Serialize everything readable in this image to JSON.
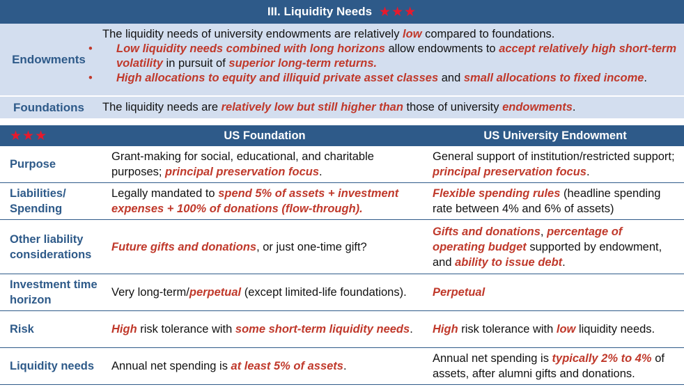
{
  "top": {
    "title": "III. Liquidity Needs",
    "stars": "★★★",
    "endowments_label": "Endowments",
    "endowments_intro": [
      "The liquidity needs of university endowments are relatively ",
      "low",
      " compared to foundations."
    ],
    "bullet_char": "•",
    "bullet1": [
      "Low liquidity needs combined with long horizons",
      " allow endowments to ",
      "accept relatively high short-term volatility",
      " in pursuit of ",
      "superior long-term returns."
    ],
    "bullet2": [
      "High allocations to equity and illiquid private asset classes",
      " and ",
      "small allocations to fixed income",
      "."
    ],
    "foundations_label": "Foundations",
    "foundations_text": [
      "The liquidity needs are ",
      "relatively low but still higher than",
      " those of university ",
      "endowments",
      "."
    ]
  },
  "table": {
    "stars": "★★★",
    "col_foundation": "US Foundation",
    "col_endowment": "US University Endowment",
    "rows": {
      "purpose": {
        "label": "Purpose",
        "foundation": [
          "Grant-making for social, educational, and charitable purposes; ",
          "principal preservation focus",
          "."
        ],
        "endowment": [
          "General support of institution/restricted support; ",
          "principal preservation focus",
          "."
        ]
      },
      "liabilities": {
        "label": "Liabilities/ Spending",
        "foundation": [
          "Legally mandated to ",
          "spend 5% of assets + investment expenses + 100% of donations (flow-through)."
        ],
        "endowment": [
          "Flexible spending rules",
          " (headline spending rate between 4% and 6% of assets)"
        ]
      },
      "other": {
        "label": "Other liability considerations",
        "foundation": [
          "Future gifts and donations",
          ", or just one-time gift?"
        ],
        "endowment": [
          "Gifts and donations",
          ", ",
          "percentage of operating budget",
          " supported by endowment, and ",
          "ability to issue debt",
          "."
        ]
      },
      "horizon": {
        "label": "Investment time horizon",
        "foundation": [
          "Very long-term/",
          "perpetual",
          " (except limited-life foundations)."
        ],
        "endowment": [
          "Perpetual"
        ]
      },
      "risk": {
        "label": "Risk",
        "foundation": [
          "High",
          " risk tolerance with ",
          "some short-term liquidity needs",
          "."
        ],
        "endowment": [
          "High",
          " risk tolerance with ",
          "low",
          " liquidity needs."
        ]
      },
      "liquidity": {
        "label": "Liquidity needs",
        "foundation": [
          "Annual net spending is ",
          "at least 5% of assets",
          "."
        ],
        "endowment": [
          "Annual net spending is ",
          "typically 2% to 4%",
          " of assets, after alumni gifts and donations."
        ]
      }
    }
  },
  "colors": {
    "header_bg": "#2e5a89",
    "band_bg": "#d3deef",
    "highlight": "#c0392b",
    "star": "#e8192c"
  }
}
